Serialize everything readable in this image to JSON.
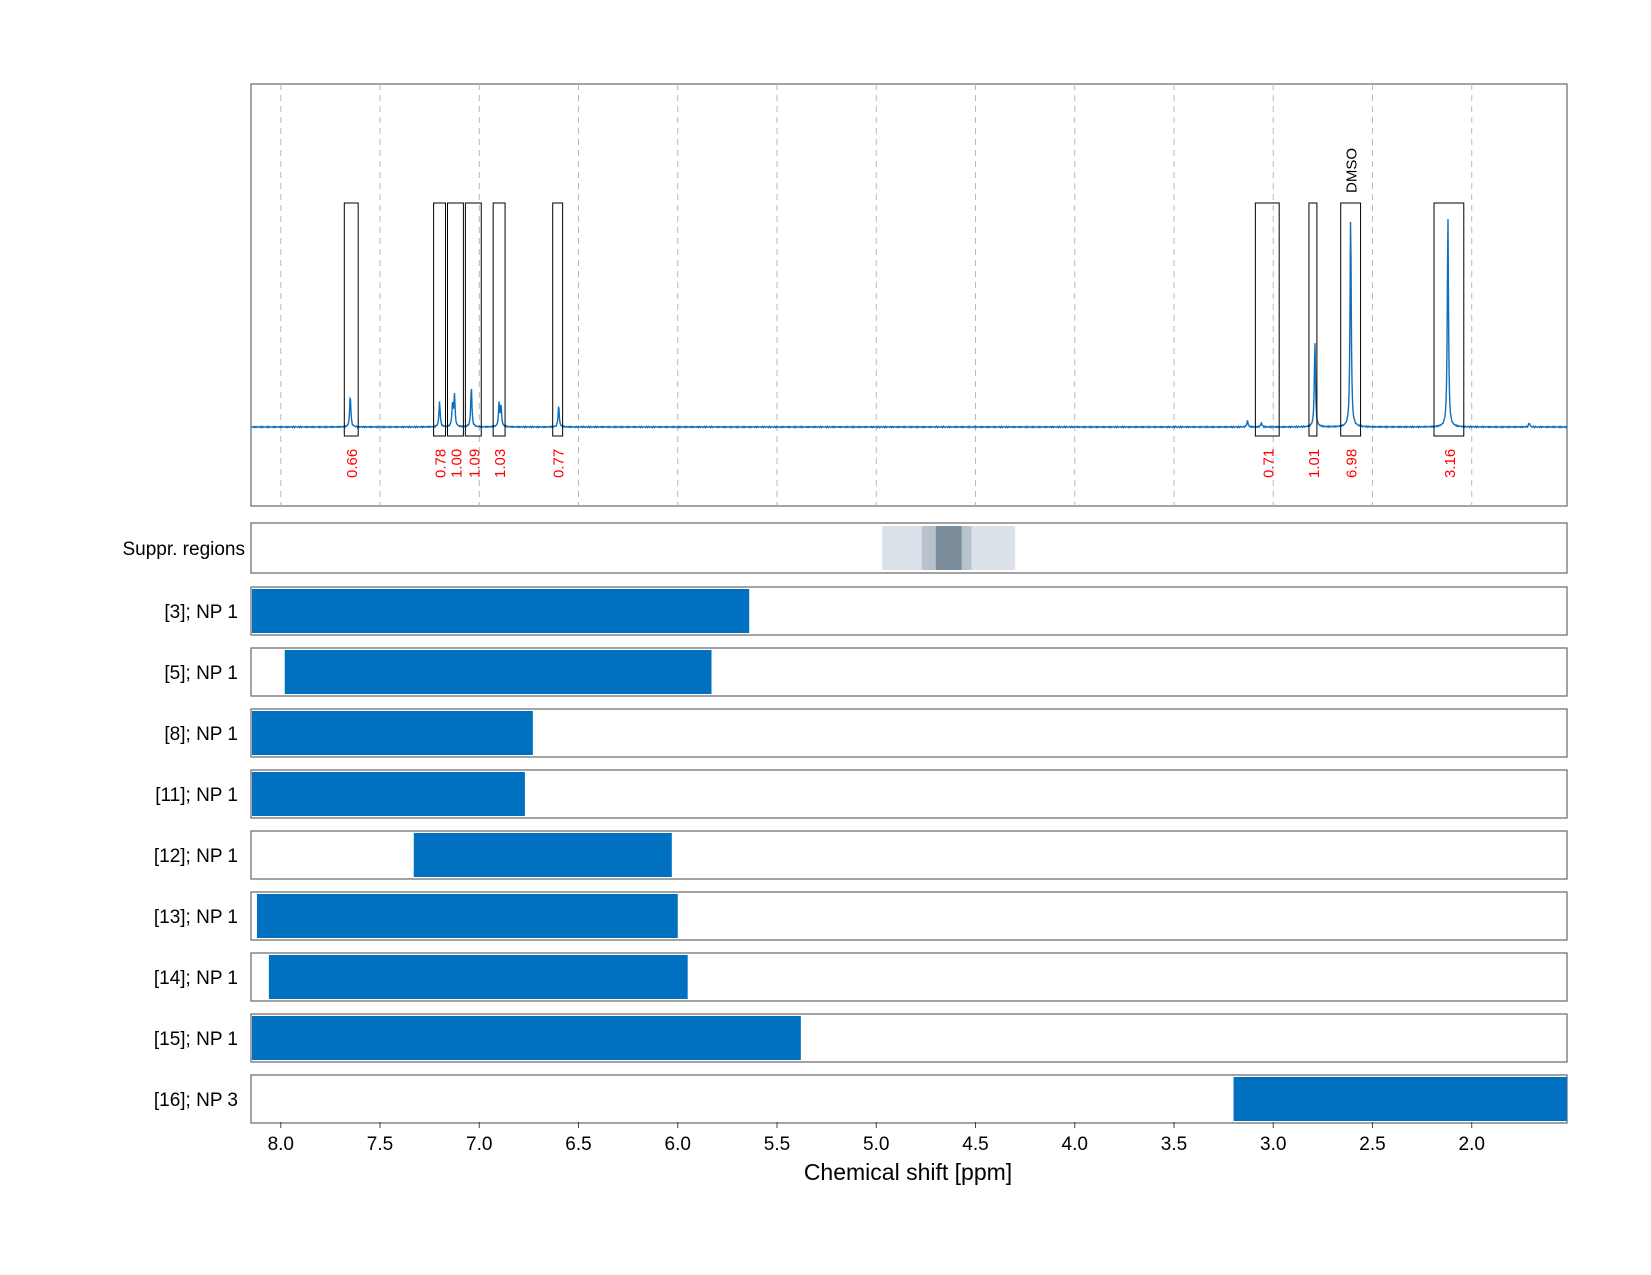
{
  "chart_data": {
    "type": "nmr-spectrum",
    "xlabel": "Chemical shift [ppm]",
    "xlim": [
      8.15,
      1.52
    ],
    "x_reversed": true,
    "xticks": [
      "8.0",
      "7.5",
      "7.0",
      "6.5",
      "6.0",
      "5.5",
      "5.0",
      "4.5",
      "4.0",
      "3.5",
      "3.0",
      "2.5",
      "2.0"
    ],
    "grid": "dashed vertical",
    "colors": {
      "spectrum": "#0d6fbd",
      "bar": "#0070c0",
      "integral_label": "#ff0000",
      "box": "#000000"
    },
    "spectrum_peaks": [
      {
        "ppm": 7.65,
        "height": 0.15
      },
      {
        "ppm": 7.2,
        "height": 0.12
      },
      {
        "ppm": 7.135,
        "height": 0.1
      },
      {
        "ppm": 7.125,
        "height": 0.15
      },
      {
        "ppm": 7.04,
        "height": 0.19
      },
      {
        "ppm": 6.9,
        "height": 0.11
      },
      {
        "ppm": 6.89,
        "height": 0.09
      },
      {
        "ppm": 6.6,
        "height": 0.1
      },
      {
        "ppm": 3.13,
        "height": 0.03
      },
      {
        "ppm": 3.06,
        "height": 0.02
      },
      {
        "ppm": 2.79,
        "height": 0.4
      },
      {
        "ppm": 2.61,
        "height": 1.0
      },
      {
        "ppm": 2.12,
        "height": 0.99
      },
      {
        "ppm": 1.71,
        "height": 0.02
      }
    ],
    "integral_regions": [
      {
        "from": 7.68,
        "to": 7.61,
        "label": "0.66"
      },
      {
        "from": 7.23,
        "to": 7.17,
        "label": "0.78"
      },
      {
        "from": 7.16,
        "to": 7.08,
        "label": "1.00"
      },
      {
        "from": 7.07,
        "to": 6.99,
        "label": "1.09"
      },
      {
        "from": 6.93,
        "to": 6.87,
        "label": "1.03"
      },
      {
        "from": 6.63,
        "to": 6.58,
        "label": "0.77"
      },
      {
        "from": 3.09,
        "to": 2.97,
        "label": "0.71"
      },
      {
        "from": 2.82,
        "to": 2.78,
        "label": "1.01"
      },
      {
        "from": 2.66,
        "to": 2.56,
        "label": "6.98",
        "annotation": "DMSO"
      },
      {
        "from": 2.19,
        "to": 2.04,
        "label": "3.16"
      }
    ],
    "suppression": {
      "label": "Suppr. regions",
      "bands": [
        {
          "from": 4.97,
          "to": 4.3,
          "level": 1
        },
        {
          "from": 4.77,
          "to": 4.52,
          "level": 2
        },
        {
          "from": 4.7,
          "to": 4.57,
          "level": 3
        }
      ]
    },
    "rows": [
      {
        "label": "[3]; NP 1",
        "from": 8.15,
        "to": 5.64
      },
      {
        "label": "[5]; NP 1",
        "from": 7.98,
        "to": 5.83
      },
      {
        "label": "[8]; NP 1",
        "from": 8.15,
        "to": 6.73
      },
      {
        "label": "[11]; NP 1",
        "from": 8.15,
        "to": 6.77
      },
      {
        "label": "[12]; NP 1",
        "from": 7.33,
        "to": 6.03
      },
      {
        "label": "[13]; NP 1",
        "from": 8.12,
        "to": 6.0
      },
      {
        "label": "[14]; NP 1",
        "from": 8.06,
        "to": 5.95
      },
      {
        "label": "[15]; NP 1",
        "from": 8.15,
        "to": 5.38
      },
      {
        "label": "[16]; NP 3",
        "from": 3.2,
        "to": 1.52
      }
    ]
  }
}
